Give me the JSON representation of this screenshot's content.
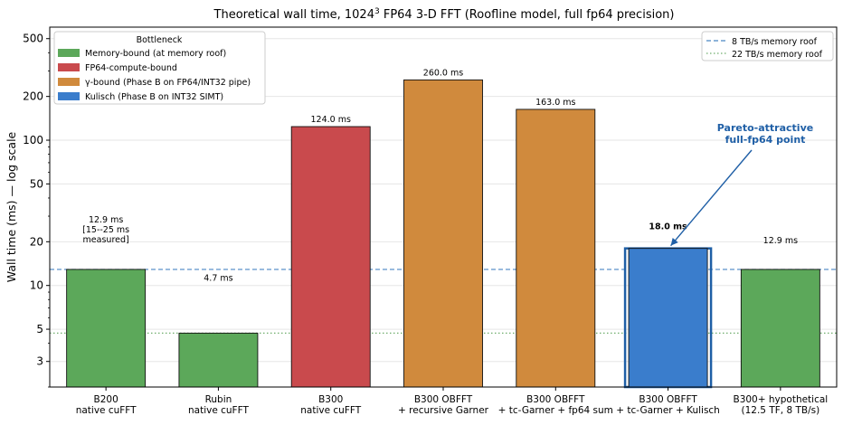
{
  "chart_data": {
    "type": "bar",
    "title_main": "Theoretical wall time, 1024",
    "title_sup": "3",
    "title_rest": " FP64 3-D FFT (Roofline model, full fp64 precision)",
    "ylabel": "Wall time (ms) — log scale",
    "yscale": "log",
    "ylim": [
      2,
      600
    ],
    "yticks": [
      3,
      5,
      10,
      20,
      50,
      100,
      200,
      500
    ],
    "ytick_labels": [
      "3",
      "5",
      "10",
      "20",
      "50",
      "100",
      "200",
      "500"
    ],
    "categories": [
      [
        "B200",
        "native cuFFT"
      ],
      [
        "Rubin",
        "native cuFFT"
      ],
      [
        "B300",
        "native cuFFT"
      ],
      [
        "B300 OBFFT",
        "+ recursive Garner"
      ],
      [
        "B300 OBFFT",
        "+ tc-Garner + fp64 sum"
      ],
      [
        "B300 OBFFT",
        "+ tc-Garner + Kulisch"
      ],
      [
        "B300+ hypothetical",
        "(12.5 TF, 8 TB/s)"
      ]
    ],
    "values": [
      12.9,
      4.7,
      124.0,
      260.0,
      163.0,
      18.0,
      12.9
    ],
    "bottleneck": [
      "memory",
      "memory",
      "compute",
      "gamma",
      "gamma",
      "kulisch",
      "memory"
    ],
    "highlight_index": 5,
    "data_labels": [
      [
        "12.9 ms",
        "[15--25 ms",
        "measured]"
      ],
      [
        "4.7 ms"
      ],
      [
        "124.0 ms"
      ],
      [
        "260.0 ms"
      ],
      [
        "163.0 ms"
      ],
      [
        "18.0 ms"
      ],
      [
        "12.9 ms"
      ]
    ],
    "bottleneck_legend": {
      "title": "Bottleneck",
      "placement": "upper-left",
      "entries": [
        {
          "key": "memory",
          "label": "Memory-bound (at memory roof)",
          "color": "#5ca85a"
        },
        {
          "key": "compute",
          "label": "FP64-compute-bound",
          "color": "#c94a4d"
        },
        {
          "key": "gamma",
          "label": "γ-bound (Phase B on FP64/INT32 pipe)",
          "color": "#d08a3d"
        },
        {
          "key": "kulisch",
          "label": "Kulisch (Phase B on INT32 SIMT)",
          "color": "#3a7dcc"
        }
      ]
    },
    "reference_lines": [
      {
        "label": "8 TB/s memory roof",
        "value": 12.9,
        "style": "dashed",
        "color": "#4a86c4"
      },
      {
        "label": "22 TB/s memory roof",
        "value": 4.7,
        "style": "dotted",
        "color": "#6fae6d"
      }
    ],
    "reference_legend_placement": "upper-right",
    "annotation": {
      "lines": [
        "Pareto-attractive",
        "full-fp64 point"
      ],
      "points_to_index": 5,
      "color": "#1f5fa6"
    },
    "grid": "y"
  }
}
